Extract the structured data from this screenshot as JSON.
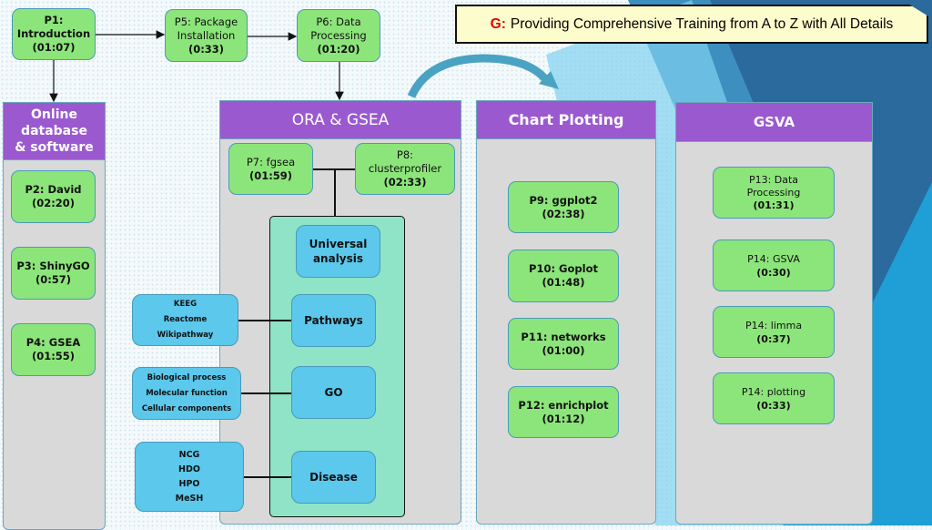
{
  "banner": {
    "prefix": "G:",
    "text": "Providing Comprehensive Training from A to Z with All Details",
    "prefix_color": "#e00000"
  },
  "top": {
    "p1": [
      "P1:",
      "Introduction",
      "(01:07)"
    ],
    "p5": [
      "P5: Package",
      "Installation",
      "(0:33)"
    ],
    "p6": [
      "P6: Data",
      "Processing",
      "(01:20)"
    ]
  },
  "online": {
    "title": [
      "Online",
      "database",
      "& software"
    ],
    "items": [
      [
        "P2: David",
        "(02:20)"
      ],
      [
        "P3: ShinyGO",
        "(0:57)"
      ],
      [
        "P4: GSEA",
        "(01:55)"
      ]
    ]
  },
  "ora": {
    "title": "ORA & GSEA",
    "p7": [
      "P7: fgsea",
      "(01:59)"
    ],
    "p8": [
      "P8:",
      "clusterprofiler",
      "(02:33)"
    ],
    "universal": [
      "Universal",
      "analysis"
    ],
    "pathways": "Pathways",
    "go": "GO",
    "disease": "Disease",
    "pathway_dbs": [
      "KEEG",
      "Reactome",
      "Wikipathway"
    ],
    "go_terms": [
      "Biological process",
      "Molecular function",
      "Cellular components"
    ],
    "disease_dbs": [
      "NCG",
      "HDO",
      "HPO",
      "MeSH"
    ]
  },
  "chart": {
    "title": "Chart Plotting",
    "items": [
      [
        "P9: ggplot2",
        "(02:38)"
      ],
      [
        "P10: Goplot",
        "(01:48)"
      ],
      [
        "P11: networks",
        "(01:00)"
      ],
      [
        "P12: enrichplot",
        "(01:12)"
      ]
    ]
  },
  "gsva": {
    "title": "GSVA",
    "items": [
      [
        "P13: Data",
        "Processing",
        "(01:31)"
      ],
      [
        "P14: GSVA",
        "(0:30)"
      ],
      [
        "P14: limma",
        "(0:37)"
      ],
      [
        "P14: plotting",
        "(0:33)"
      ]
    ]
  }
}
